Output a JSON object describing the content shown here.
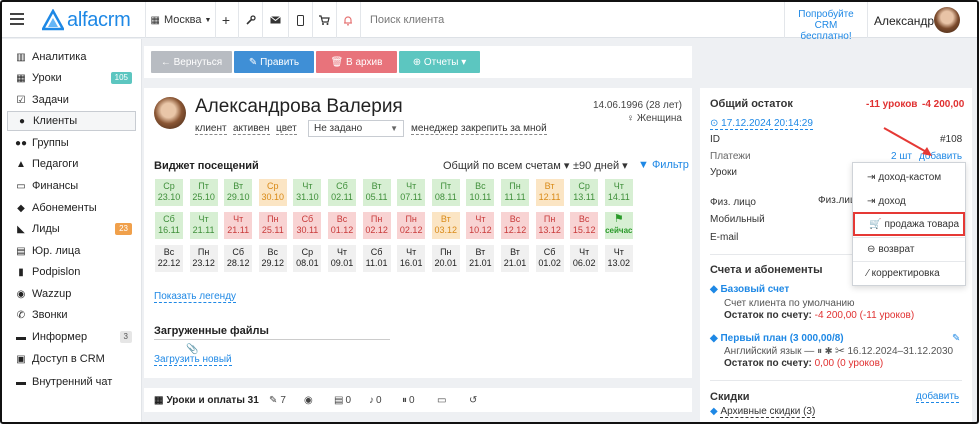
{
  "topbar": {
    "logo": "alfacrm",
    "city": "Москва",
    "search_placeholder": "Поиск клиента",
    "promo_line1": "Попробуйте",
    "promo_line2": "CRM бесплатно!",
    "user_name": "Александра"
  },
  "sidebar": {
    "items": [
      {
        "label": "Аналитика",
        "icon": "analytics-icon"
      },
      {
        "label": "Уроки",
        "icon": "calendar-icon",
        "badge": "105"
      },
      {
        "label": "Задачи",
        "icon": "tasks-icon"
      },
      {
        "label": "Клиенты",
        "icon": "user-icon"
      },
      {
        "label": "Группы",
        "icon": "group-icon"
      },
      {
        "label": "Педагоги",
        "icon": "teacher-icon"
      },
      {
        "label": "Финансы",
        "icon": "money-icon"
      },
      {
        "label": "Абонементы",
        "icon": "tag-icon"
      },
      {
        "label": "Лиды",
        "icon": "funnel-icon",
        "badge": "23"
      },
      {
        "label": "Юр. лица",
        "icon": "building-icon"
      },
      {
        "label": "Podpislon",
        "icon": "doc-icon"
      },
      {
        "label": "Wazzup",
        "icon": "whatsapp-icon"
      },
      {
        "label": "Звонки",
        "icon": "phone-icon"
      },
      {
        "label": "Информер",
        "icon": "informer-icon",
        "badge": "3"
      },
      {
        "label": "Доступ в CRM",
        "icon": "lock-icon"
      },
      {
        "label": "Внутренний чат",
        "icon": "chat-icon"
      }
    ]
  },
  "actions": {
    "back": "← Вернуться",
    "edit": "✎ Править",
    "archive": "🗑 В архив",
    "reports": "⊕ Отчеты ▾"
  },
  "profile": {
    "name": "Александрова Валерия",
    "meta": [
      "клиент",
      "активен",
      "цвет"
    ],
    "select_value": "Не задано",
    "manager": "менеджер",
    "assign": "закрепить за мной",
    "dob": "14.06.1996 (28 лет)",
    "gender": "♀ Женщина"
  },
  "widget": {
    "title": "Виджет посещений",
    "filter_accounts": "Общий по всем счетам ▾",
    "filter_days": "±90 дней ▾",
    "filter_link": "▼ Фильтр",
    "legend_link": "Показать легенду",
    "cells": [
      {
        "d": "Ср",
        "n": "23.10",
        "c": "green"
      },
      {
        "d": "Пт",
        "n": "25.10",
        "c": "green"
      },
      {
        "d": "Вт",
        "n": "29.10",
        "c": "green"
      },
      {
        "d": "Ср",
        "n": "30.10",
        "c": "orange"
      },
      {
        "d": "Чт",
        "n": "31.10",
        "c": "green"
      },
      {
        "d": "Сб",
        "n": "02.11",
        "c": "green"
      },
      {
        "d": "Вт",
        "n": "05.11",
        "c": "green"
      },
      {
        "d": "Чт",
        "n": "07.11",
        "c": "green"
      },
      {
        "d": "Пт",
        "n": "08.11",
        "c": "green"
      },
      {
        "d": "Вс",
        "n": "10.11",
        "c": "green"
      },
      {
        "d": "Пн",
        "n": "11.11",
        "c": "green"
      },
      {
        "d": "Вт",
        "n": "12.11",
        "c": "orange"
      },
      {
        "d": "Ср",
        "n": "13.11",
        "c": "green"
      },
      {
        "d": "Чт",
        "n": "14.11",
        "c": "green"
      },
      {
        "d": "Сб",
        "n": "16.11",
        "c": "green"
      },
      {
        "d": "Чт",
        "n": "21.11",
        "c": "green"
      },
      {
        "d": "Чт",
        "n": "21.11",
        "c": "red"
      },
      {
        "d": "Пн",
        "n": "25.11",
        "c": "red"
      },
      {
        "d": "Сб",
        "n": "30.11",
        "c": "red"
      },
      {
        "d": "Вс",
        "n": "01.12",
        "c": "red"
      },
      {
        "d": "Пн",
        "n": "02.12",
        "c": "red"
      },
      {
        "d": "Пн",
        "n": "02.12",
        "c": "red"
      },
      {
        "d": "Вт",
        "n": "03.12",
        "c": "orange"
      },
      {
        "d": "Чт",
        "n": "10.12",
        "c": "red"
      },
      {
        "d": "Вс",
        "n": "12.12",
        "c": "red"
      },
      {
        "d": "Пн",
        "n": "13.12",
        "c": "red"
      },
      {
        "d": "Вс",
        "n": "15.12",
        "c": "red"
      },
      {
        "d": "сейчас",
        "n": "",
        "c": "flag"
      },
      {
        "d": "Вс",
        "n": "22.12",
        "c": "grey"
      },
      {
        "d": "Пн",
        "n": "23.12",
        "c": "grey"
      },
      {
        "d": "Сб",
        "n": "28.12",
        "c": "grey"
      },
      {
        "d": "Вс",
        "n": "29.12",
        "c": "grey"
      },
      {
        "d": "Ср",
        "n": "08.01",
        "c": "grey"
      },
      {
        "d": "Чт",
        "n": "09.01",
        "c": "grey"
      },
      {
        "d": "Сб",
        "n": "11.01",
        "c": "grey"
      },
      {
        "d": "Чт",
        "n": "16.01",
        "c": "grey"
      },
      {
        "d": "Пн",
        "n": "20.01",
        "c": "grey"
      },
      {
        "d": "Вт",
        "n": "21.01",
        "c": "grey"
      },
      {
        "d": "Вт",
        "n": "21.01",
        "c": "grey"
      },
      {
        "d": "Сб",
        "n": "01.02",
        "c": "grey"
      },
      {
        "d": "Чт",
        "n": "06.02",
        "c": "grey"
      },
      {
        "d": "Чт",
        "n": "13.02",
        "c": "grey"
      }
    ]
  },
  "files": {
    "title": "Загруженные файлы",
    "upload": "Загрузить новый"
  },
  "tabs": {
    "lessons": "Уроки и оплаты 31",
    "t2": "7",
    "t3": "",
    "t4": "0",
    "t5": "0",
    "t6": "0",
    "t7": "",
    "t8": ""
  },
  "balance": {
    "title": "Общий остаток",
    "lessons": "-11 уроков",
    "amount": "-4 200,00",
    "date": "17.12.2024 20:14:29",
    "id_label": "ID",
    "id_value": "#108",
    "payments_label": "Платежи",
    "payments_count": "2 шт",
    "add_link": "добавить",
    "lessons_label": "Уроки",
    "fiz_label": "Физ. лицо",
    "fiz_label2": "Физ.лиц",
    "mobile_label": "Мобильный",
    "email_label": "E-mail"
  },
  "dropdown": {
    "income_custom": "доход-кастом",
    "income": "доход",
    "product_sale": "продажа товара",
    "refund": "возврат",
    "correction": "корректировка"
  },
  "accounts": {
    "title": "Счета и абонементы",
    "base_title": "Базовый счет",
    "base_desc": "Счет клиента по умолчанию",
    "base_rest_label": "Остаток по счету:",
    "base_rest_value": "-4 200,00 (-11 уроков)",
    "plan_title": "Первый план (3 000,00/8)",
    "plan_desc": "Английский язык — ⏸ ✱ ✂ 16.12.2024–31.12.2030",
    "plan_rest_label": "Остаток по счету:",
    "plan_rest_value": "0,00 (0 уроков)"
  },
  "discounts": {
    "title": "Скидки",
    "add_link": "добавить",
    "archive": "Архивные скидки (3)"
  }
}
